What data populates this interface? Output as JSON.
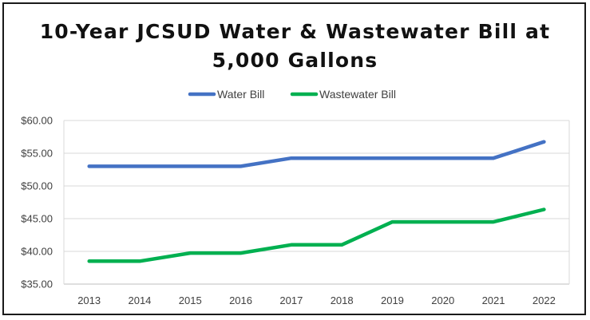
{
  "chart_data": {
    "type": "line",
    "title_lines": [
      "10-Year JCSUD Water & Wastewater Bill at",
      "5,000 Gallons"
    ],
    "categories": [
      "2013",
      "2014",
      "2015",
      "2016",
      "2017",
      "2018",
      "2019",
      "2020",
      "2021",
      "2022"
    ],
    "series": [
      {
        "name": "Water Bill",
        "color": "#4472C4",
        "values": [
          53.0,
          53.0,
          53.0,
          53.0,
          54.25,
          54.25,
          54.25,
          54.25,
          54.25,
          56.75
        ]
      },
      {
        "name": "Wastewater Bill",
        "color": "#00B050",
        "values": [
          38.5,
          38.5,
          39.75,
          39.75,
          41.0,
          41.0,
          44.5,
          44.5,
          44.5,
          46.4
        ]
      }
    ],
    "y_ticks": [
      "$35.00",
      "$40.00",
      "$45.00",
      "$50.00",
      "$55.00",
      "$60.00"
    ],
    "ylim": [
      35,
      60
    ],
    "xlabel": "",
    "ylabel": "",
    "grid": true,
    "legend_position": "top"
  }
}
